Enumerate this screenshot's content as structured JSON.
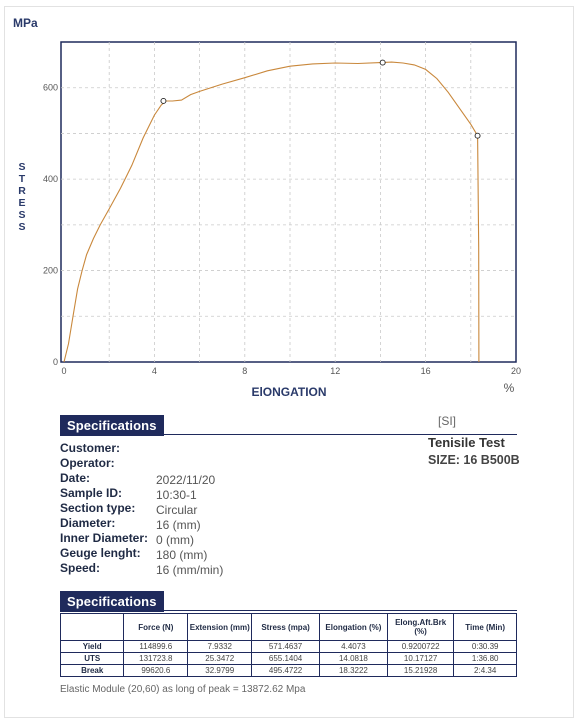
{
  "chart_data": {
    "type": "line",
    "unit_label": "MPa",
    "ylabel": "STRESS",
    "xlabel": "ElONGATION",
    "xunit": "%",
    "xlim": [
      0,
      20
    ],
    "ylim": [
      0,
      700
    ],
    "xticks": [
      0,
      4,
      8,
      12,
      16,
      20
    ],
    "yticks": [
      0,
      200,
      400,
      600
    ],
    "grid": true,
    "series": [
      {
        "color": "#c9883c",
        "x": [
          0,
          0.2,
          0.4,
          0.6,
          0.8,
          1.0,
          1.3,
          1.6,
          2.0,
          2.5,
          3.0,
          3.5,
          4.0,
          4.3,
          4.5,
          4.8,
          5.2,
          5.6,
          6.0,
          7.0,
          8.0,
          9.0,
          10.0,
          11.0,
          12.0,
          13.0,
          14.0,
          14.5,
          15.0,
          15.5,
          16.0,
          16.5,
          17.0,
          17.5,
          18.0,
          18.3,
          18.35,
          18.36
        ],
        "y": [
          0,
          40,
          100,
          160,
          200,
          235,
          270,
          300,
          335,
          380,
          430,
          490,
          540,
          562,
          571,
          571,
          573,
          585,
          592,
          608,
          622,
          637,
          647,
          652,
          654,
          653,
          655,
          656,
          654,
          650,
          640,
          620,
          590,
          555,
          520,
          495,
          250,
          0
        ]
      }
    ],
    "markers": [
      {
        "x": 4.4,
        "y": 571
      },
      {
        "x": 14.1,
        "y": 655
      },
      {
        "x": 18.3,
        "y": 495
      }
    ]
  },
  "specs": {
    "title": "Specifications",
    "si": "[SI]",
    "test_title": "Tenisile Test",
    "test_size": "SIZE: 16 B500B",
    "rows": [
      {
        "label": "Customer:",
        "value": ""
      },
      {
        "label": "Operator:",
        "value": ""
      },
      {
        "label": "Date:",
        "value": "2022/11/20"
      },
      {
        "label": "Sample ID:",
        "value": "10:30-1"
      },
      {
        "label": "Section type:",
        "value": "Circular"
      },
      {
        "label": "Diameter:",
        "value": "16 (mm)"
      },
      {
        "label": "Inner Diameter:",
        "value": "0 (mm)"
      },
      {
        "label": "Geuge lenght:",
        "value": "180 (mm)"
      },
      {
        "label": "Speed:",
        "value": "16 (mm/min)"
      }
    ]
  },
  "results": {
    "title": "Specifications",
    "headers": [
      "",
      "Force (N)",
      "Extension (mm)",
      "Stress (mpa)",
      "Elongation (%)",
      "Elong.Aft.Brk (%)",
      "Time (Min)"
    ],
    "rows": [
      [
        "Yield",
        "114899.6",
        "7.9332",
        "571.4637",
        "4.4073",
        "0.9200722",
        "0:30.39"
      ],
      [
        "UTS",
        "131723.8",
        "25.3472",
        "655.1404",
        "14.0818",
        "10.17127",
        "1:36.80"
      ],
      [
        "Break",
        "99620.6",
        "32.9799",
        "495.4722",
        "18.3222",
        "15.21928",
        "2:4.34"
      ]
    ],
    "footnote": "Elastic Module (20,60) as long of peak = 13872.62 Mpa"
  }
}
